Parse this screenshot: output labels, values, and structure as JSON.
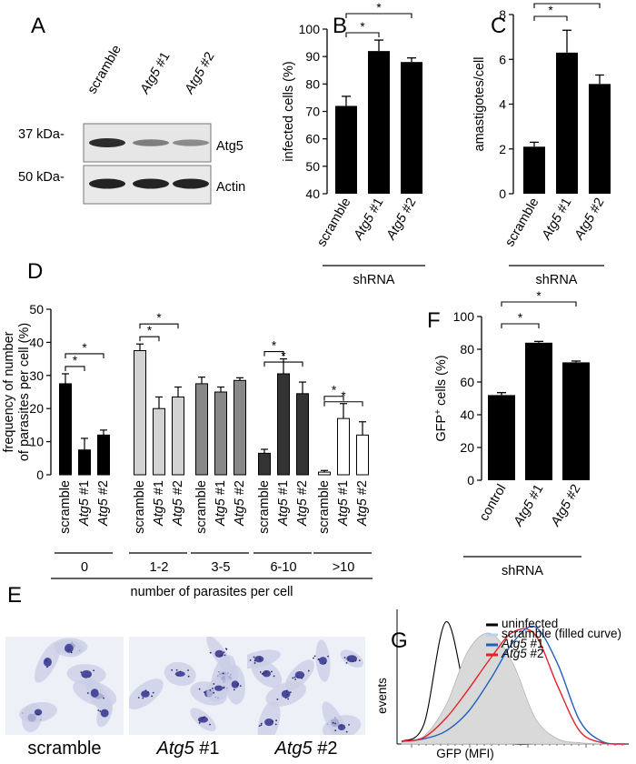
{
  "panel_letters": [
    "A",
    "B",
    "C",
    "D",
    "E",
    "F",
    "G"
  ],
  "blot": {
    "lanes": [
      "scramble",
      "Atg5 #1",
      "Atg5 #2"
    ],
    "mw_markers": [
      "37 kDa-",
      "50 kDa-"
    ],
    "proteins": [
      "Atg5",
      "Actin"
    ],
    "atg5_relative_band_intensity": [
      1.0,
      0.4,
      0.3
    ]
  },
  "micrographs": {
    "labels": [
      {
        "gene": "",
        "suffix": "scramble"
      },
      {
        "gene": "Atg5",
        "suffix": " #1"
      },
      {
        "gene": "Atg5",
        "suffix": " #2"
      }
    ]
  },
  "colors": {
    "bar_black": "#000000",
    "bar_light_gray": "#d3d3d3",
    "bar_mid_gray": "#888888",
    "bar_dark_gray": "#333333",
    "bar_white": "#ffffff",
    "hist_uninfected": "#000000",
    "hist_scramble_fill": "#d9d9d9",
    "hist_atg5_1": "#1f5fbf",
    "hist_atg5_2": "#e8202a",
    "stain": "#4a4a9a"
  },
  "chart_data": [
    {
      "panel": "B",
      "type": "bar",
      "categories": [
        "scramble",
        "Atg5 #1",
        "Atg5 #2"
      ],
      "values": [
        72,
        92,
        88
      ],
      "errors": [
        3.5,
        4,
        1.5
      ],
      "ylabel": "infected cells (%)",
      "ylim": [
        40,
        100
      ],
      "yticks": [
        40,
        50,
        60,
        70,
        80,
        90,
        100
      ],
      "group_label": "shRNA",
      "significance": [
        {
          "from": "scramble",
          "to": "Atg5 #1",
          "label": "*"
        },
        {
          "from": "scramble",
          "to": "Atg5 #2",
          "label": "*"
        }
      ]
    },
    {
      "panel": "C",
      "type": "bar",
      "categories": [
        "scramble",
        "Atg5 #1",
        "Atg5 #2"
      ],
      "values": [
        2.1,
        6.3,
        4.9
      ],
      "errors": [
        0.2,
        1.0,
        0.4
      ],
      "ylabel": "amastigotes/cell",
      "ylim": [
        0,
        8
      ],
      "yticks": [
        0,
        2,
        4,
        6,
        8
      ],
      "group_label": "shRNA",
      "significance": [
        {
          "from": "scramble",
          "to": "Atg5 #1",
          "label": "*"
        },
        {
          "from": "scramble",
          "to": "Atg5 #2",
          "label": "*"
        }
      ]
    },
    {
      "panel": "D",
      "type": "bar",
      "groups": [
        "0",
        "1-2",
        "3-5",
        "6-10",
        ">10"
      ],
      "categories": [
        "scramble",
        "Atg5 #1",
        "Atg5 #2"
      ],
      "values": [
        [
          27.5,
          7.5,
          12
        ],
        [
          37.5,
          20,
          23.5
        ],
        [
          27.5,
          25,
          28.5
        ],
        [
          6.5,
          30.5,
          24.5
        ],
        [
          0.8,
          17,
          12
        ]
      ],
      "errors": [
        [
          3,
          3.5,
          1.5
        ],
        [
          2,
          3.5,
          3
        ],
        [
          2,
          1.5,
          0.8
        ],
        [
          1.2,
          4.5,
          3.5
        ],
        [
          0.5,
          4.5,
          4
        ]
      ],
      "ylabel": "frequency of number of parasites per cell (%)",
      "ylabel_lines": [
        "frequency of number",
        "of parasites per cell (%)"
      ],
      "xlabel": "number of parasites per cell",
      "ylim": [
        0,
        50
      ],
      "yticks": [
        0,
        10,
        20,
        30,
        40,
        50
      ],
      "significance": [
        {
          "group": "0",
          "from": "scramble",
          "to": "Atg5 #1",
          "label": "*"
        },
        {
          "group": "0",
          "from": "scramble",
          "to": "Atg5 #2",
          "label": "*"
        },
        {
          "group": "1-2",
          "from": "scramble",
          "to": "Atg5 #1",
          "label": "*"
        },
        {
          "group": "1-2",
          "from": "scramble",
          "to": "Atg5 #2",
          "label": "*"
        },
        {
          "group": "6-10",
          "from": "scramble",
          "to": "Atg5 #1",
          "label": "*"
        },
        {
          "group": "6-10",
          "from": "scramble",
          "to": "Atg5 #2",
          "label": "*"
        },
        {
          "group": ">10",
          "from": "scramble",
          "to": "Atg5 #1",
          "label": "*"
        },
        {
          "group": ">10",
          "from": "scramble",
          "to": "Atg5 #2",
          "label": "*"
        }
      ]
    },
    {
      "panel": "F",
      "type": "bar",
      "categories": [
        "control",
        "Atg5 #1",
        "Atg5 #2"
      ],
      "values": [
        52,
        84,
        72
      ],
      "errors": [
        1.5,
        0.8,
        0.8
      ],
      "ylabel": "GFP+ cells (%)",
      "ylabel_main": "GFP",
      "ylabel_sup": "+",
      "ylabel_rest": " cells (%)",
      "ylim": [
        0,
        100
      ],
      "yticks": [
        0,
        20,
        40,
        60,
        80,
        100
      ],
      "group_label": "shRNA",
      "significance": [
        {
          "from": "control",
          "to": "Atg5 #1",
          "label": "*"
        },
        {
          "from": "control",
          "to": "Atg5 #2",
          "label": "*"
        }
      ]
    },
    {
      "panel": "G",
      "type": "line",
      "xlabel": "GFP (MFI)",
      "ylabel": "events",
      "xlog": true,
      "x": [
        0,
        0.1,
        0.2,
        0.3,
        0.4,
        0.5,
        0.6,
        0.7,
        0.8,
        0.9,
        1.0
      ],
      "series": [
        {
          "name": "uninfected",
          "filled": false,
          "values": [
            0.02,
            0.15,
            0.94,
            0.3,
            0.04,
            0.0,
            0.0,
            0.0,
            0.0,
            0.0,
            0.0
          ]
        },
        {
          "name": "scramble (filled curve)",
          "filled": true,
          "values": [
            0.02,
            0.06,
            0.3,
            0.72,
            0.85,
            0.62,
            0.2,
            0.04,
            0.01,
            0.0,
            0.0
          ]
        },
        {
          "name": "Atg5 #1",
          "filled": false,
          "values": [
            0.02,
            0.04,
            0.1,
            0.25,
            0.5,
            0.78,
            0.9,
            0.62,
            0.18,
            0.02,
            0.0
          ]
        },
        {
          "name": "Atg5 #2",
          "filled": false,
          "values": [
            0.02,
            0.05,
            0.2,
            0.42,
            0.66,
            0.86,
            0.84,
            0.45,
            0.1,
            0.01,
            0.0
          ]
        }
      ],
      "legend": [
        {
          "prefix": "",
          "italic": "",
          "suffix": "uninfected"
        },
        {
          "prefix": "",
          "italic": "",
          "suffix": "scramble (filled curve)"
        },
        {
          "prefix": "",
          "italic": "Atg5",
          "suffix": " #1"
        },
        {
          "prefix": "",
          "italic": "Atg5",
          "suffix": " #2"
        }
      ],
      "legend_position": "top-right"
    }
  ]
}
